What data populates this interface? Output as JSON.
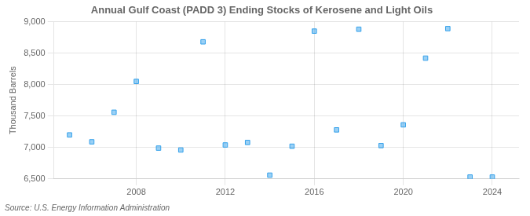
{
  "chart_data": {
    "type": "scatter",
    "title": "Annual Gulf Coast (PADD 3) Ending Stocks of Kerosene and Light Oils",
    "ylabel": "Thousand Barrels",
    "source": "Source: U.S. Energy Information Administration",
    "marker": "square",
    "x": [
      2005,
      2006,
      2007,
      2008,
      2009,
      2010,
      2011,
      2012,
      2013,
      2014,
      2015,
      2016,
      2017,
      2018,
      2019,
      2020,
      2021,
      2022,
      2023,
      2024
    ],
    "values": [
      7200,
      7090,
      7560,
      8050,
      6990,
      6960,
      8680,
      7040,
      7080,
      6560,
      7020,
      8850,
      7280,
      8880,
      7030,
      7360,
      8420,
      8890,
      6530,
      6530
    ],
    "xlim": [
      2004.3,
      2025.2
    ],
    "xticks": [
      2008,
      2012,
      2016,
      2020,
      2024
    ],
    "ylim": [
      6500,
      9000
    ],
    "yticks": [
      {
        "value": 6500,
        "label": "6,500"
      },
      {
        "value": 7000,
        "label": "7,000"
      },
      {
        "value": 7500,
        "label": "7,500"
      },
      {
        "value": 8000,
        "label": "8,000"
      },
      {
        "value": 8500,
        "label": "8,500"
      },
      {
        "value": 9000,
        "label": "9,000"
      }
    ],
    "grid": true
  }
}
